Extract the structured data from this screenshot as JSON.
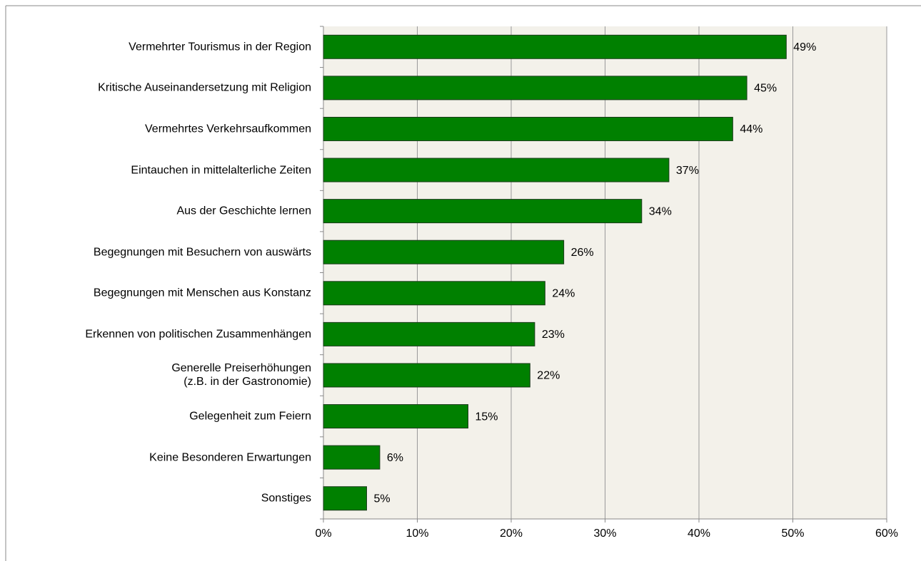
{
  "chart_data": {
    "type": "hbar",
    "categories": [
      "Vermehrter Tourismus in der Region",
      "Kritische Auseinandersetzung mit Religion",
      "Vermehrtes Verkehrsaufkommen",
      "Eintauchen in mittelalterliche Zeiten",
      "Aus der Geschichte lernen",
      "Begegnungen mit Besuchern von auswärts",
      "Begegnungen mit Menschen aus Konstanz",
      "Erkennen von politischen Zusammenhängen",
      "Generelle Preiserhöhungen\n(z.B. in der Gastronomie)",
      "Gelegenheit zum Feiern",
      "Keine Besonderen Erwartungen",
      "Sonstiges"
    ],
    "values": [
      49.3,
      45.1,
      43.6,
      36.8,
      33.9,
      25.6,
      23.6,
      22.5,
      22.0,
      15.4,
      6.0,
      4.6
    ],
    "value_labels": [
      "49%",
      "45%",
      "44%",
      "37%",
      "34%",
      "26%",
      "24%",
      "23%",
      "22%",
      "15%",
      "6%",
      "5%"
    ],
    "color": "#008000",
    "xlim": [
      0,
      60
    ],
    "xticks": [
      {
        "value": 0,
        "label": "0%"
      },
      {
        "value": 10,
        "label": "10%"
      },
      {
        "value": 20,
        "label": "20%"
      },
      {
        "value": 30,
        "label": "30%"
      },
      {
        "value": 40,
        "label": "40%"
      },
      {
        "value": 50,
        "label": "50%"
      },
      {
        "value": 60,
        "label": "60%"
      }
    ],
    "grid": true
  }
}
